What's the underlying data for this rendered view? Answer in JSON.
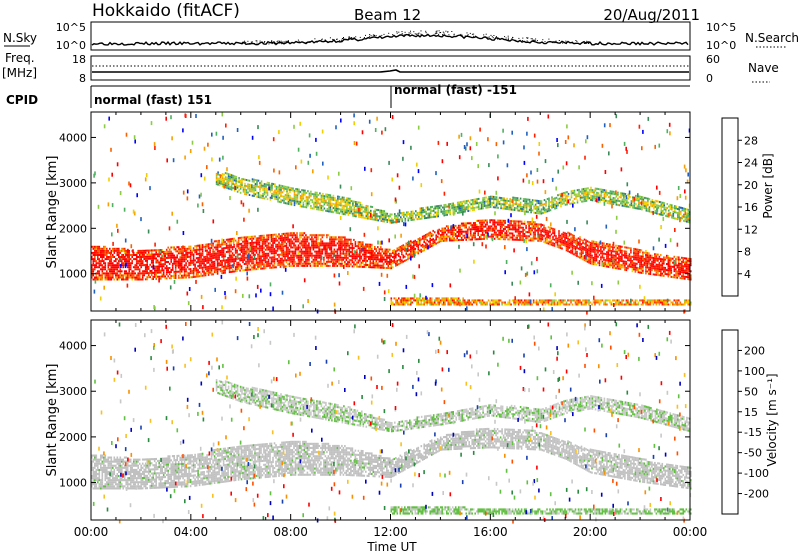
{
  "header": {
    "station": "Hokkaido (fitACF)",
    "beam": "Beam 12",
    "date": "20/Aug/2011"
  },
  "top_panels": {
    "nsky_label": "N.Sky",
    "nsky_tick_top": "10^5",
    "nsky_tick_bottom": "10^0",
    "nsearch_label": "N.Search",
    "freq_label_1": "Freq.",
    "freq_label_2": "[MHz]",
    "freq_tick_top": "18",
    "freq_tick_bottom": "8",
    "nave_label": "Nave",
    "nave_tick_top": "60",
    "nave_tick_bottom": "0",
    "cpid_label": "CPID",
    "cpid_segments": [
      {
        "label": "normal (fast) 151",
        "start_hour": 0,
        "end_hour": 12
      },
      {
        "label": "normal (fast) -151",
        "start_hour": 12,
        "end_hour": 24
      }
    ]
  },
  "colors": {
    "power_scale": [
      "#0000ff",
      "#2060c0",
      "#3a8a5a",
      "#4fb060",
      "#8ccc40",
      "#f0d000",
      "#f8a000",
      "#f86000",
      "#ff2000",
      "#ff0000"
    ],
    "velocity_scale": [
      "#ff0000",
      "#ff5000",
      "#f89000",
      "#f8c020",
      "#c8c8c8",
      "#c8c8c8",
      "#60c040",
      "#2a8a40",
      "#1840b0",
      "#0000c0"
    ],
    "ground_scatter": "#c0c0c0"
  },
  "chart_data": [
    {
      "type": "heatmap",
      "title": "",
      "xlabel": "",
      "ylabel": "Slant Range [km]",
      "xlim": [
        0,
        24
      ],
      "ylim": [
        180,
        4560
      ],
      "x_ticks": [
        0,
        4,
        8,
        12,
        16,
        20,
        24
      ],
      "y_ticks": [
        1000,
        2000,
        3000,
        4000
      ],
      "colorbar": {
        "label": "Power [dB]",
        "ticks": [
          "4",
          "8",
          "12",
          "16",
          "20",
          "24",
          "28"
        ],
        "range": [
          0,
          30
        ]
      },
      "bands": [
        {
          "name": "main_band",
          "hours": [
            0,
            2,
            4,
            6,
            8,
            10,
            12,
            14,
            16,
            18,
            19,
            20,
            22,
            24
          ],
          "lower_km": [
            850,
            850,
            900,
            1050,
            1150,
            1150,
            1100,
            1700,
            1750,
            1700,
            1500,
            1200,
            1000,
            850
          ],
          "upper_km": [
            1600,
            1500,
            1600,
            1800,
            1900,
            1800,
            1500,
            2000,
            2200,
            2100,
            1900,
            1700,
            1500,
            1300
          ],
          "power_db": 28
        },
        {
          "name": "upper_band",
          "hours": [
            5,
            6,
            8,
            10,
            11,
            12,
            14,
            16,
            18,
            19,
            20,
            22,
            24
          ],
          "lower_km": [
            2950,
            2750,
            2500,
            2300,
            2200,
            2100,
            2250,
            2450,
            2300,
            2500,
            2600,
            2400,
            2100
          ],
          "upper_km": [
            3250,
            3100,
            2900,
            2700,
            2500,
            2300,
            2500,
            2700,
            2600,
            2800,
            2900,
            2700,
            2400
          ],
          "power_db": 16
        },
        {
          "name": "near_range",
          "hours": [
            12,
            13,
            14,
            16,
            18,
            20,
            22,
            24
          ],
          "lower_km": [
            300,
            300,
            300,
            300,
            300,
            300,
            300,
            300
          ],
          "upper_km": [
            450,
            480,
            450,
            420,
            420,
            400,
            400,
            400
          ],
          "power_db": 24
        }
      ]
    },
    {
      "type": "heatmap",
      "title": "",
      "xlabel": "Time UT",
      "ylabel": "Slant Range [km]",
      "xlim": [
        0,
        24
      ],
      "ylim": [
        180,
        4560
      ],
      "x_ticks": [
        0,
        4,
        8,
        12,
        16,
        20,
        24
      ],
      "x_tick_labels": [
        "00:00",
        "04:00",
        "08:00",
        "12:00",
        "16:00",
        "20:00",
        "00:00"
      ],
      "y_ticks": [
        1000,
        2000,
        3000,
        4000
      ],
      "colorbar": {
        "label": "Velocity [m s⁻¹]",
        "ticks": [
          "200",
          "100",
          "50",
          "15",
          "-15",
          "-50",
          "-100",
          "-200"
        ],
        "range": [
          -250,
          250
        ]
      },
      "bands": [
        {
          "name": "main_band",
          "hours": [
            0,
            2,
            4,
            6,
            8,
            10,
            12,
            14,
            16,
            18,
            19,
            20,
            22,
            24
          ],
          "lower_km": [
            850,
            850,
            900,
            1050,
            1150,
            1150,
            1100,
            1700,
            1750,
            1700,
            1500,
            1200,
            1000,
            850
          ],
          "upper_km": [
            1600,
            1500,
            1600,
            1800,
            1900,
            1800,
            1500,
            2000,
            2200,
            2100,
            1900,
            1700,
            1500,
            1300
          ],
          "velocity": 0
        },
        {
          "name": "upper_band",
          "hours": [
            5,
            6,
            8,
            10,
            11,
            12,
            14,
            16,
            18,
            19,
            20,
            22,
            24
          ],
          "lower_km": [
            2950,
            2750,
            2500,
            2300,
            2200,
            2100,
            2250,
            2450,
            2300,
            2500,
            2600,
            2400,
            2100
          ],
          "upper_km": [
            3250,
            3100,
            2900,
            2700,
            2500,
            2300,
            2500,
            2700,
            2600,
            2800,
            2900,
            2700,
            2400
          ],
          "velocity": -40
        },
        {
          "name": "near_range",
          "hours": [
            12,
            13,
            14,
            16,
            18,
            20,
            22,
            24
          ],
          "lower_km": [
            300,
            300,
            300,
            300,
            300,
            300,
            300,
            300
          ],
          "upper_km": [
            450,
            480,
            450,
            420,
            420,
            400,
            400,
            400
          ],
          "velocity": -60
        }
      ]
    }
  ]
}
